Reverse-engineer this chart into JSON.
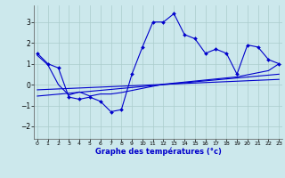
{
  "xlabel": "Graphe des températures (°c)",
  "background_color": "#cce8ec",
  "grid_color": "#aacccc",
  "line_color": "#0000cc",
  "x_ticks": [
    0,
    1,
    2,
    3,
    4,
    5,
    6,
    7,
    8,
    9,
    10,
    11,
    12,
    13,
    14,
    15,
    16,
    17,
    18,
    19,
    20,
    21,
    22,
    23
  ],
  "ylim": [
    -2.6,
    3.8
  ],
  "xlim": [
    -0.3,
    23.3
  ],
  "yticks": [
    -2,
    -1,
    0,
    1,
    2,
    3
  ],
  "series1_x": [
    0,
    1,
    2,
    3,
    4,
    5,
    6,
    7,
    8,
    9,
    10,
    11,
    12,
    13,
    14,
    15,
    16,
    17,
    18,
    19,
    20,
    21,
    22,
    23
  ],
  "series1_y": [
    1.5,
    1.0,
    0.8,
    -0.6,
    -0.7,
    -0.6,
    -0.8,
    -1.3,
    -1.2,
    0.5,
    1.8,
    3.0,
    3.0,
    3.4,
    2.4,
    2.2,
    1.5,
    1.7,
    1.5,
    0.5,
    1.9,
    1.8,
    1.2,
    1.0
  ],
  "series2_x": [
    0,
    1,
    2,
    3,
    4,
    5,
    6,
    7,
    8,
    9,
    10,
    11,
    12,
    13,
    14,
    15,
    16,
    17,
    18,
    19,
    20,
    21,
    22,
    23
  ],
  "series2_y": [
    1.4,
    0.95,
    0.0,
    -0.5,
    -0.35,
    -0.55,
    -0.45,
    -0.45,
    -0.38,
    -0.28,
    -0.18,
    -0.08,
    0.02,
    0.07,
    0.12,
    0.17,
    0.22,
    0.27,
    0.32,
    0.37,
    0.47,
    0.57,
    0.67,
    1.0
  ],
  "series3_x": [
    0,
    23
  ],
  "series3_y": [
    -0.55,
    0.5
  ],
  "series4_x": [
    0,
    23
  ],
  "series4_y": [
    -0.25,
    0.25
  ]
}
